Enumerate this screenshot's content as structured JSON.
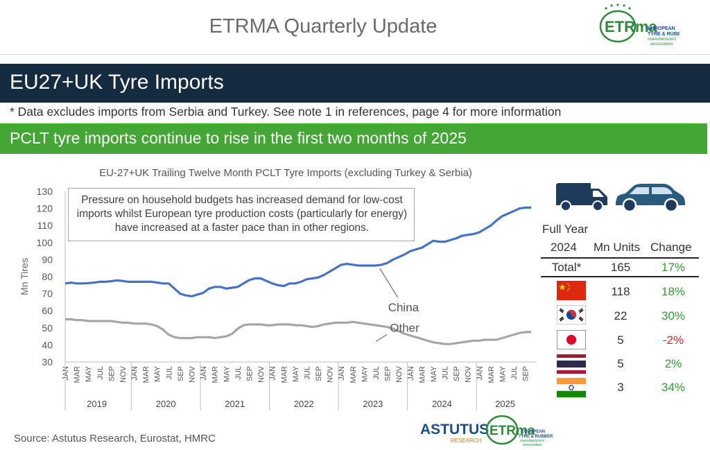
{
  "header": {
    "title": "ETRMA Quarterly Update",
    "logo_mark": "ETRma",
    "logo_line1": "EUROPEAN",
    "logo_line2": "TYRE & RUBBER",
    "logo_line3": "manufacturers'",
    "logo_line4": "association"
  },
  "section": {
    "title": "EU27+UK Tyre Imports",
    "note": "* Data excludes imports from Serbia and Turkey. See note 1 in references, page 4 for more information",
    "headline": "PCLT tyre imports continue to rise in the first two months of 2025"
  },
  "annotation": "Pressure on household budgets has increased demand for low-cost imports whilst European tyre production costs (particularly for energy) have increased at a faster pace than in other regions.",
  "chart_data": {
    "type": "line",
    "title": "EU-27+UK Trailing Twelve Month PCLT Tyre Imports (excluding Turkey & Serbia)",
    "ylabel": "Mn Tires",
    "ylim": [
      30,
      130
    ],
    "yticks": [
      30,
      40,
      50,
      60,
      70,
      80,
      90,
      100,
      110,
      120,
      130
    ],
    "grid": false,
    "month_labels": [
      "JAN",
      "MAR",
      "MAY",
      "JUL",
      "SEP",
      "NOV"
    ],
    "years": [
      "2019",
      "2020",
      "2021",
      "2022",
      "2023",
      "2024",
      "2025"
    ],
    "x_start": "2019-01",
    "x_end": "2025-02",
    "series": [
      {
        "name": "China",
        "color": "#4472c4",
        "values": [
          76,
          76.5,
          76,
          76,
          76.2,
          76.5,
          77,
          77,
          77.3,
          77.8,
          77.5,
          77,
          77,
          77,
          77,
          77,
          76.5,
          76,
          76,
          73,
          70,
          69,
          68.5,
          69.5,
          70.5,
          73,
          74,
          74,
          73,
          73.5,
          74,
          76,
          78,
          79,
          79,
          77.5,
          76,
          75,
          74.5,
          76,
          76,
          77,
          78.5,
          79,
          79.5,
          81,
          83,
          85,
          87,
          87.5,
          87,
          86.5,
          86.5,
          86.5,
          86.5,
          87,
          88,
          90,
          91.5,
          93,
          95,
          96,
          97,
          99,
          101,
          100.5,
          100.5,
          101.5,
          102.5,
          104,
          104.5,
          105,
          106,
          108,
          110,
          113,
          115.5,
          117,
          118.5,
          120,
          120.5,
          120.5
        ]
      },
      {
        "name": "Other",
        "color": "#a6a6a6",
        "values": [
          55,
          55,
          54.5,
          54.5,
          54,
          54,
          54,
          54,
          54,
          53.5,
          53,
          53,
          52.5,
          52.5,
          52.5,
          52,
          51,
          49,
          46,
          44.5,
          44,
          44,
          44,
          44.5,
          44.5,
          44.5,
          44,
          44.5,
          45,
          46.5,
          49.5,
          51.5,
          52,
          52,
          52,
          51.5,
          51.5,
          52,
          52,
          52,
          51.5,
          51.5,
          51,
          50.5,
          51,
          52,
          52.5,
          53,
          53,
          53,
          53.5,
          53,
          52.5,
          52,
          51.5,
          51,
          50.5,
          49.5,
          48,
          46.5,
          45.5,
          44.5,
          43.5,
          42.5,
          41.5,
          41,
          40.5,
          40.5,
          41,
          41.5,
          42,
          42.5,
          42.5,
          43,
          43,
          43,
          44,
          45,
          46,
          47,
          47.5,
          47.5
        ]
      }
    ]
  },
  "icons": {
    "van": "van-icon",
    "car": "car-icon"
  },
  "table": {
    "header_line1": "Full Year",
    "header_line2": "2024",
    "col_units": "Mn Units",
    "col_change": "Change",
    "total": {
      "label": "Total*",
      "units": "165",
      "change": "17%"
    },
    "rows": [
      {
        "country": "China",
        "flag": "china-flag-icon",
        "units": "118",
        "change": "18%",
        "change_color": "#2e9e2e"
      },
      {
        "country": "South Korea",
        "flag": "korea-flag-icon",
        "units": "22",
        "change": "30%",
        "change_color": "#2e9e2e"
      },
      {
        "country": "Japan",
        "flag": "japan-flag-icon",
        "units": "5",
        "change": "-2%",
        "change_color": "#e02424"
      },
      {
        "country": "Thailand",
        "flag": "thailand-flag-icon",
        "units": "5",
        "change": "2%",
        "change_color": "#2e9e2e"
      },
      {
        "country": "India",
        "flag": "india-flag-icon",
        "units": "3",
        "change": "34%",
        "change_color": "#2e9e2e"
      }
    ]
  },
  "footer": {
    "source": "Source: Astutus Research, Eurostat, HMRC",
    "astutus": "ASTUTUS",
    "astutus_sub": "RESEARCH"
  },
  "colors": {
    "navy": "#142b40",
    "green": "#44a635",
    "china_line": "#4472c4",
    "other_line": "#a6a6a6"
  }
}
